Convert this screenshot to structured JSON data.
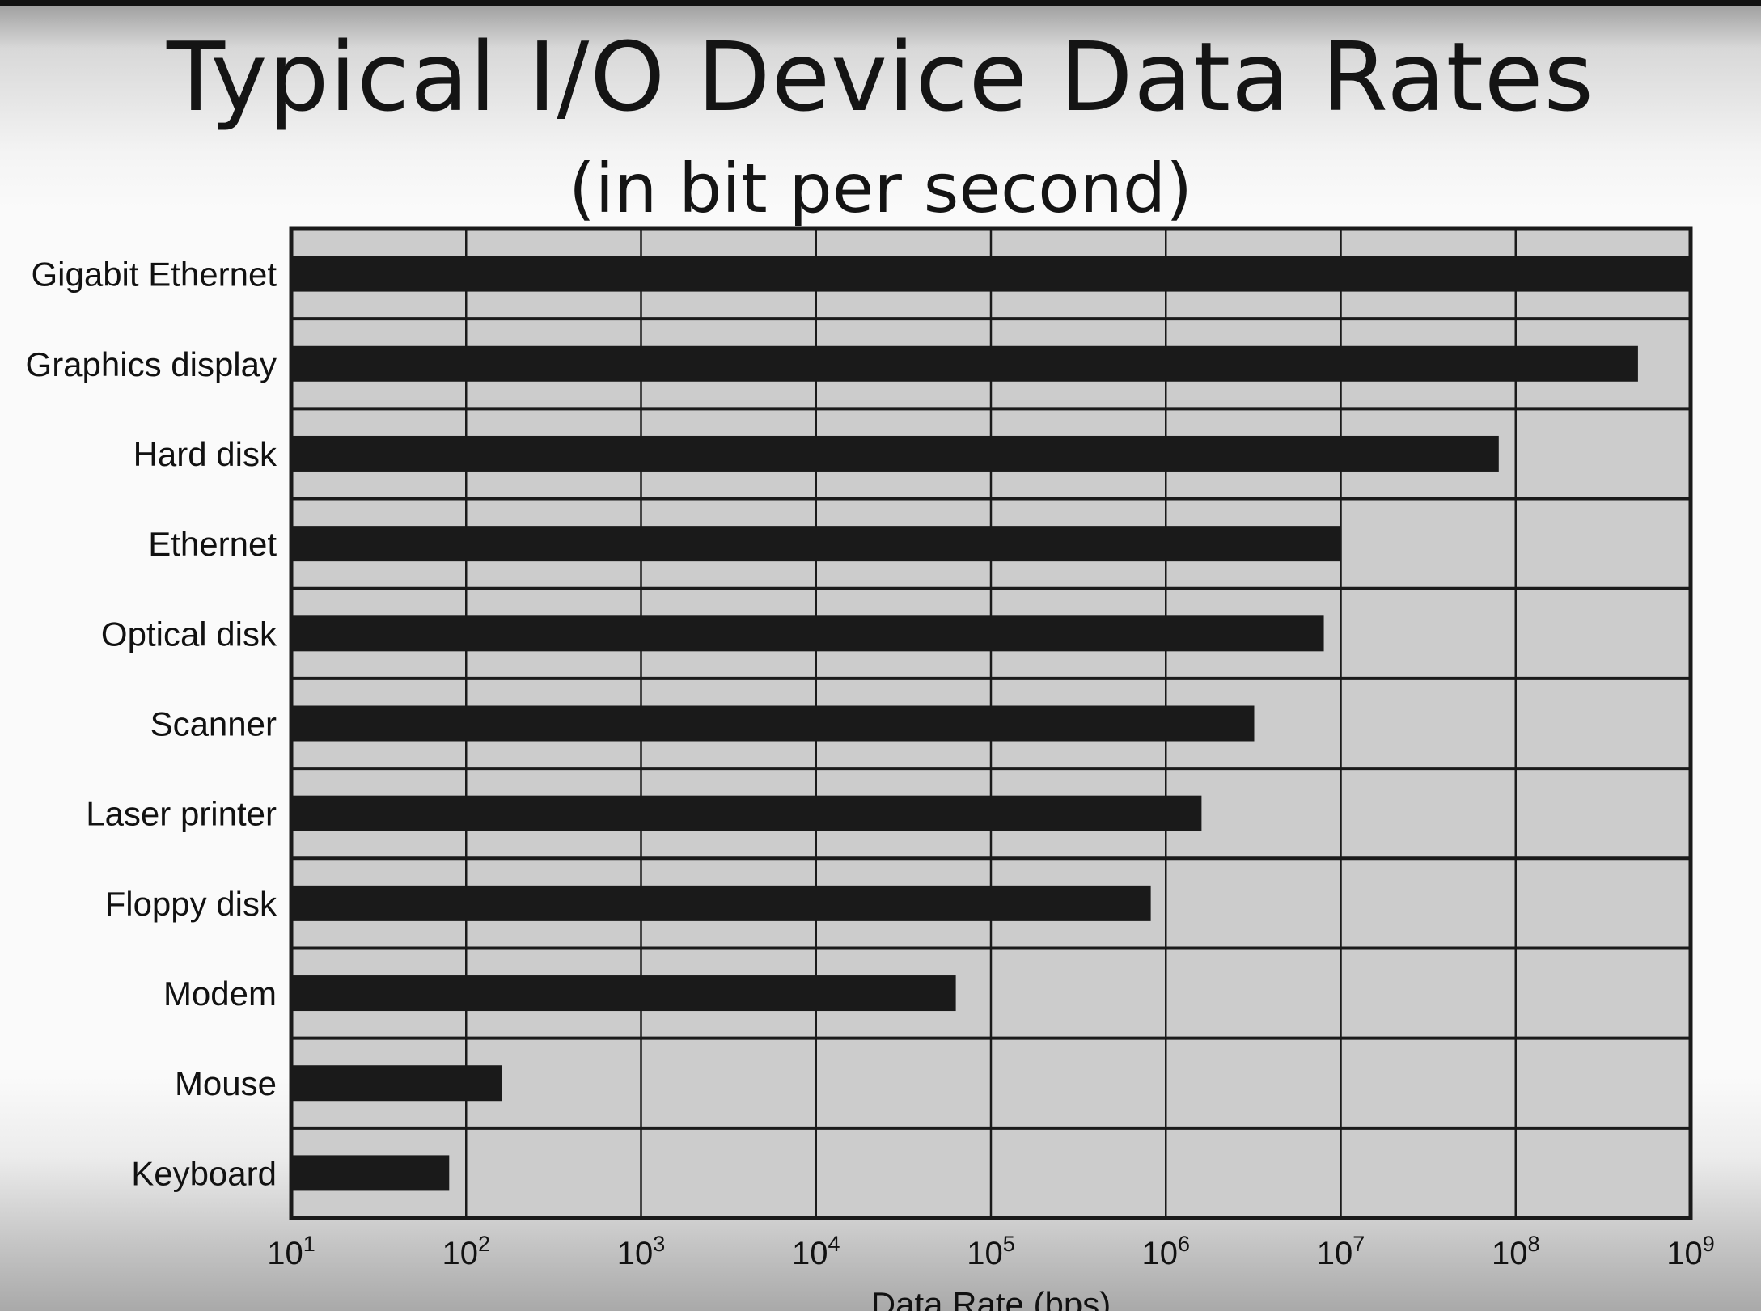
{
  "title": "Typical I/O Device Data Rates",
  "subtitle": "(in bit per second)",
  "colors": {
    "plot_background": "#cccccc",
    "bar": "#1a1a1a",
    "grid": "#1a1a1a",
    "page_background": "#fafafa"
  },
  "chart_data": {
    "type": "bar",
    "orientation": "horizontal",
    "xscale": "log",
    "xlim": [
      10,
      1000000000
    ],
    "xlabel": "Data Rate (bps)",
    "ylabel": "",
    "grid": true,
    "legend": "none",
    "x_ticks": [
      {
        "base": "10",
        "exp": "1"
      },
      {
        "base": "10",
        "exp": "2"
      },
      {
        "base": "10",
        "exp": "3"
      },
      {
        "base": "10",
        "exp": "4"
      },
      {
        "base": "10",
        "exp": "5"
      },
      {
        "base": "10",
        "exp": "6"
      },
      {
        "base": "10",
        "exp": "7"
      },
      {
        "base": "10",
        "exp": "8"
      },
      {
        "base": "10",
        "exp": "9"
      }
    ],
    "categories": [
      "Gigabit Ethernet",
      "Graphics display",
      "Hard disk",
      "Ethernet",
      "Optical disk",
      "Scanner",
      "Laser printer",
      "Floppy disk",
      "Modem",
      "Mouse",
      "Keyboard"
    ],
    "values": [
      1000000000,
      500000000,
      80000000,
      10000000,
      8000000,
      3200000,
      1600000,
      820000,
      63000,
      160,
      80
    ]
  }
}
